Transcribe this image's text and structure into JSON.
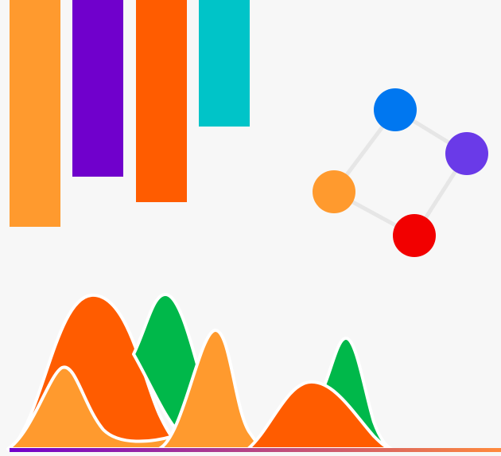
{
  "bars": [
    {
      "level": 0.498,
      "color": "#ff9a2e"
    },
    {
      "level": 0.387,
      "color": "#7000cc"
    },
    {
      "level": 0.443,
      "color": "#ff5c00"
    },
    {
      "level": 0.277,
      "color": "#00c4c8"
    }
  ],
  "network": {
    "edge_color": "#e6e6e6",
    "nodes": [
      {
        "name": "blue-node",
        "color": "#0077f0"
      },
      {
        "name": "purple-node",
        "color": "#6a3ae8"
      },
      {
        "name": "red-node",
        "color": "#f20000"
      },
      {
        "name": "orange-node",
        "color": "#ff9a2e"
      }
    ]
  },
  "waves": {
    "colors": {
      "orange_dark": "#ff5c00",
      "green": "#00b84a",
      "orange_light": "#ff9a2e",
      "outline": "#ffffff"
    },
    "baseline_gradient": [
      "#7000cc",
      "#ff8a3c"
    ]
  }
}
